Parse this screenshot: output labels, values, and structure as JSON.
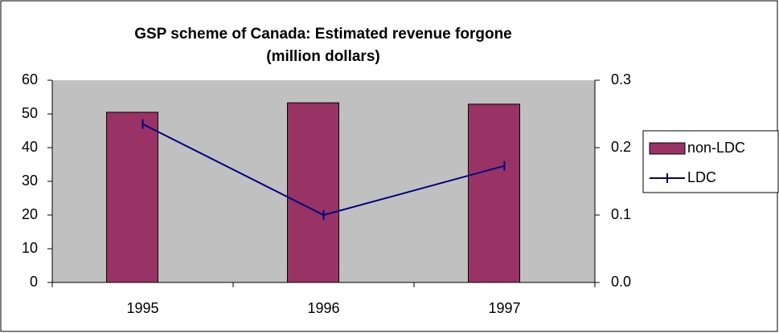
{
  "chart_data": {
    "type": "bar-line",
    "title": "GSP scheme of Canada: Estimated revenue forgone",
    "subtitle": "(million dollars)",
    "categories": [
      "1995",
      "1996",
      "1997"
    ],
    "series": [
      {
        "name": "non-LDC",
        "type": "bar",
        "color": "#993366",
        "values": [
          50.5,
          53.3,
          52.9
        ]
      },
      {
        "name": "LDC",
        "type": "line",
        "axis": "y2",
        "color": "#000080",
        "values": [
          0.235,
          0.1,
          0.173
        ]
      }
    ],
    "ylim": [
      0,
      60
    ],
    "yticks": [
      0,
      10,
      20,
      30,
      40,
      50,
      60
    ],
    "y2lim": [
      0,
      0.3
    ],
    "y2ticks": [
      {
        "value": 0,
        "label": "0.0"
      },
      0.1,
      0.2,
      0.3
    ],
    "legend": "right",
    "plot_background": "#c0c0c0"
  }
}
